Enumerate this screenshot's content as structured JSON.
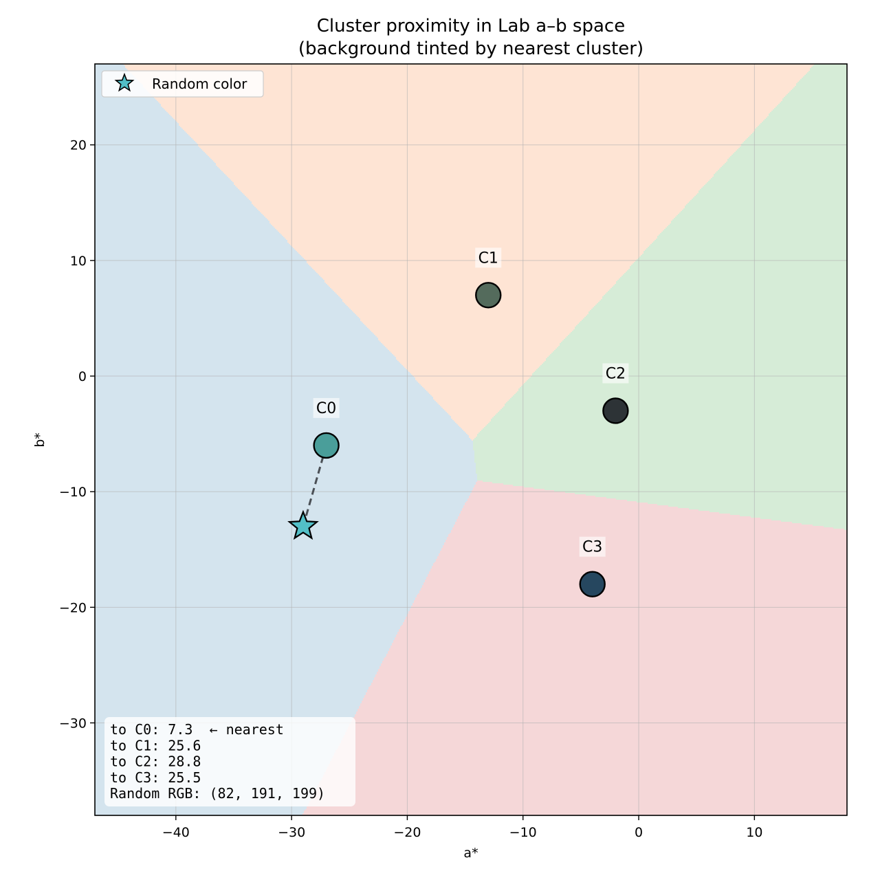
{
  "chart_data": {
    "type": "scatter",
    "title": "Cluster proximity in Lab a–b space",
    "subtitle": "(background tinted by nearest cluster)",
    "xlabel": "a*",
    "ylabel": "b*",
    "xlim": [
      -47,
      18
    ],
    "ylim": [
      -38,
      27
    ],
    "xticks": [
      -40,
      -30,
      -20,
      -10,
      0,
      10
    ],
    "xtick_labels": [
      "−40",
      "−30",
      "−20",
      "−10",
      "0",
      "10"
    ],
    "yticks": [
      20,
      10,
      0,
      -10,
      -20,
      -30
    ],
    "ytick_labels": [
      "20",
      "10",
      "0",
      "−10",
      "−20",
      "−30"
    ],
    "grid": true,
    "legend_position": "top-left",
    "clusters": [
      {
        "label": "C0",
        "a": -27,
        "b": -6,
        "color": "#4a9e9a",
        "region_color": "#d4e4ee"
      },
      {
        "label": "C1",
        "a": -13,
        "b": 7,
        "color": "#546b5c",
        "region_color": "#fee4d4"
      },
      {
        "label": "C2",
        "a": -2,
        "b": -3,
        "color": "#2d3336",
        "region_color": "#d6ecd7"
      },
      {
        "label": "C3",
        "a": -4,
        "b": -18,
        "color": "#26475f",
        "region_color": "#f5d7d8"
      }
    ],
    "random_point": {
      "a": -29,
      "b": -13,
      "color": "#52bfc7",
      "nearest": "C0"
    },
    "legend": {
      "label": "Random color",
      "marker": "star-icon"
    },
    "info_lines": [
      "to C0: 7.3  ← nearest",
      "to C1: 25.6",
      "to C2: 28.8",
      "to C3: 25.5",
      "Random RGB: (82, 191, 199)"
    ]
  }
}
